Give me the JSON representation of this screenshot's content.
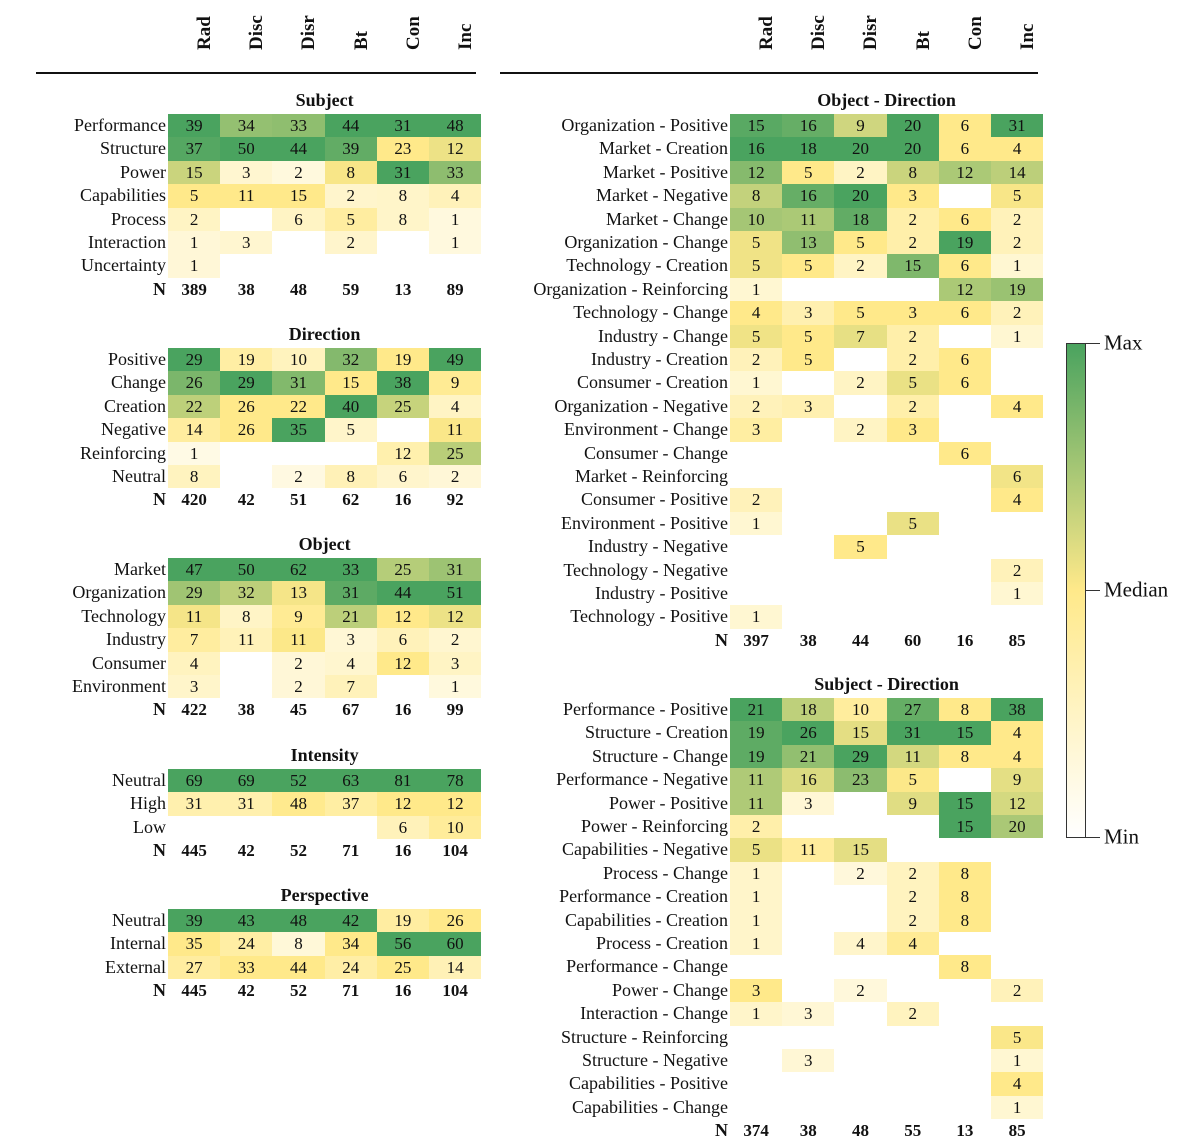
{
  "chart_data": {
    "type": "heatmap",
    "columns": [
      "Rad",
      "Disc",
      "Disr",
      "Bt",
      "Con",
      "Inc"
    ],
    "color_scale": {
      "max": "#4aa35f",
      "median": "#ffe98a",
      "min": "#ffffff"
    },
    "legend": {
      "max": "Max",
      "median": "Median",
      "min": "Min"
    },
    "n_label": "N",
    "left_panels": [
      {
        "title": "Subject",
        "rows": [
          {
            "label": "Performance",
            "values": [
              39,
              34,
              33,
              44,
              31,
              48
            ]
          },
          {
            "label": "Structure",
            "values": [
              37,
              50,
              44,
              39,
              23,
              12
            ]
          },
          {
            "label": "Power",
            "values": [
              15,
              3,
              2,
              8,
              31,
              33
            ]
          },
          {
            "label": "Capabilities",
            "values": [
              5,
              11,
              15,
              2,
              8,
              4
            ]
          },
          {
            "label": "Process",
            "values": [
              2,
              null,
              6,
              5,
              8,
              1
            ]
          },
          {
            "label": "Interaction",
            "values": [
              1,
              3,
              null,
              2,
              null,
              1
            ]
          },
          {
            "label": "Uncertainty",
            "values": [
              1,
              null,
              null,
              null,
              null,
              null
            ]
          }
        ],
        "n": [
          389,
          38,
          48,
          59,
          13,
          89
        ]
      },
      {
        "title": "Direction",
        "rows": [
          {
            "label": "Positive",
            "values": [
              29,
              19,
              10,
              32,
              19,
              49
            ]
          },
          {
            "label": "Change",
            "values": [
              26,
              29,
              31,
              15,
              38,
              9
            ]
          },
          {
            "label": "Creation",
            "values": [
              22,
              26,
              22,
              40,
              25,
              4
            ]
          },
          {
            "label": "Negative",
            "values": [
              14,
              26,
              35,
              5,
              null,
              11
            ]
          },
          {
            "label": "Reinforcing",
            "values": [
              1,
              null,
              null,
              null,
              12,
              25
            ]
          },
          {
            "label": "Neutral",
            "values": [
              8,
              null,
              2,
              8,
              6,
              2
            ]
          }
        ],
        "n": [
          420,
          42,
          51,
          62,
          16,
          92
        ]
      },
      {
        "title": "Object",
        "rows": [
          {
            "label": "Market",
            "values": [
              47,
              50,
              62,
              33,
              25,
              31
            ]
          },
          {
            "label": "Organization",
            "values": [
              29,
              32,
              13,
              31,
              44,
              51
            ]
          },
          {
            "label": "Technology",
            "values": [
              11,
              8,
              9,
              21,
              12,
              12
            ]
          },
          {
            "label": "Industry",
            "values": [
              7,
              11,
              11,
              3,
              6,
              2
            ]
          },
          {
            "label": "Consumer",
            "values": [
              4,
              null,
              2,
              4,
              12,
              3
            ]
          },
          {
            "label": "Environment",
            "values": [
              3,
              null,
              2,
              7,
              null,
              1
            ]
          }
        ],
        "n": [
          422,
          38,
          45,
          67,
          16,
          99
        ]
      },
      {
        "title": "Intensity",
        "rows": [
          {
            "label": "Neutral",
            "values": [
              69,
              69,
              52,
              63,
              81,
              78
            ]
          },
          {
            "label": "High",
            "values": [
              31,
              31,
              48,
              37,
              12,
              12
            ]
          },
          {
            "label": "Low",
            "values": [
              null,
              null,
              null,
              null,
              6,
              10
            ]
          }
        ],
        "n": [
          445,
          42,
          52,
          71,
          16,
          104
        ]
      },
      {
        "title": "Perspective",
        "rows": [
          {
            "label": "Neutral",
            "values": [
              39,
              43,
              48,
              42,
              19,
              26
            ]
          },
          {
            "label": "Internal",
            "values": [
              35,
              24,
              8,
              34,
              56,
              60
            ]
          },
          {
            "label": "External",
            "values": [
              27,
              33,
              44,
              24,
              25,
              14
            ]
          }
        ],
        "n": [
          445,
          42,
          52,
          71,
          16,
          104
        ]
      }
    ],
    "right_panels": [
      {
        "title": "Object - Direction",
        "rows": [
          {
            "label": "Organization - Positive",
            "values": [
              15,
              16,
              9,
              20,
              6,
              31
            ]
          },
          {
            "label": "Market - Creation",
            "values": [
              16,
              18,
              20,
              20,
              6,
              4
            ]
          },
          {
            "label": "Market - Positive",
            "values": [
              12,
              5,
              2,
              8,
              12,
              14
            ]
          },
          {
            "label": "Market - Negative",
            "values": [
              8,
              16,
              20,
              3,
              null,
              5
            ]
          },
          {
            "label": "Market - Change",
            "values": [
              10,
              11,
              18,
              2,
              6,
              2
            ]
          },
          {
            "label": "Organization - Change",
            "values": [
              5,
              13,
              5,
              2,
              19,
              2
            ]
          },
          {
            "label": "Technology - Creation",
            "values": [
              5,
              5,
              2,
              15,
              6,
              1
            ]
          },
          {
            "label": "Organization - Reinforcing",
            "values": [
              1,
              null,
              null,
              null,
              12,
              19
            ]
          },
          {
            "label": "Technology - Change",
            "values": [
              4,
              3,
              5,
              3,
              6,
              2
            ]
          },
          {
            "label": "Industry - Change",
            "values": [
              5,
              5,
              7,
              2,
              null,
              1
            ]
          },
          {
            "label": "Industry - Creation",
            "values": [
              2,
              5,
              null,
              2,
              6,
              null
            ]
          },
          {
            "label": "Consumer - Creation",
            "values": [
              1,
              null,
              2,
              5,
              6,
              null
            ]
          },
          {
            "label": "Organization - Negative",
            "values": [
              2,
              3,
              null,
              2,
              null,
              4
            ]
          },
          {
            "label": "Environment - Change",
            "values": [
              3,
              null,
              2,
              3,
              null,
              null
            ]
          },
          {
            "label": "Consumer - Change",
            "values": [
              null,
              null,
              null,
              null,
              6,
              null
            ]
          },
          {
            "label": "Market - Reinforcing",
            "values": [
              null,
              null,
              null,
              null,
              null,
              6
            ]
          },
          {
            "label": "Consumer - Positive",
            "values": [
              2,
              null,
              null,
              null,
              null,
              4
            ]
          },
          {
            "label": "Environment - Positive",
            "values": [
              1,
              null,
              null,
              5,
              null,
              null
            ]
          },
          {
            "label": "Industry - Negative",
            "values": [
              null,
              null,
              5,
              null,
              null,
              null
            ]
          },
          {
            "label": "Technology - Negative",
            "values": [
              null,
              null,
              null,
              null,
              null,
              2
            ]
          },
          {
            "label": "Industry - Positive",
            "values": [
              null,
              null,
              null,
              null,
              null,
              1
            ]
          },
          {
            "label": "Technology - Positive",
            "values": [
              1,
              null,
              null,
              null,
              null,
              null
            ]
          }
        ],
        "n": [
          397,
          38,
          44,
          60,
          16,
          85
        ]
      },
      {
        "title": "Subject - Direction",
        "rows": [
          {
            "label": "Performance - Positive",
            "values": [
              21,
              18,
              10,
              27,
              8,
              38
            ]
          },
          {
            "label": "Structure - Creation",
            "values": [
              19,
              26,
              15,
              31,
              15,
              4
            ]
          },
          {
            "label": "Structure - Change",
            "values": [
              19,
              21,
              29,
              11,
              8,
              4
            ]
          },
          {
            "label": "Performance - Negative",
            "values": [
              11,
              16,
              23,
              5,
              null,
              9
            ]
          },
          {
            "label": "Power - Positive",
            "values": [
              11,
              3,
              null,
              9,
              15,
              12
            ]
          },
          {
            "label": "Power - Reinforcing",
            "values": [
              2,
              null,
              null,
              null,
              15,
              20
            ]
          },
          {
            "label": "Capabilities - Negative",
            "values": [
              5,
              11,
              15,
              null,
              null,
              null
            ]
          },
          {
            "label": "Process - Change",
            "values": [
              1,
              null,
              2,
              2,
              8,
              null
            ]
          },
          {
            "label": "Performance - Creation",
            "values": [
              1,
              null,
              null,
              2,
              8,
              null
            ]
          },
          {
            "label": "Capabilities - Creation",
            "values": [
              1,
              null,
              null,
              2,
              8,
              null
            ]
          },
          {
            "label": "Process - Creation",
            "values": [
              1,
              null,
              4,
              4,
              null,
              null
            ]
          },
          {
            "label": "Performance - Change",
            "values": [
              null,
              null,
              null,
              null,
              8,
              null
            ]
          },
          {
            "label": "Power - Change",
            "values": [
              3,
              null,
              2,
              null,
              null,
              2
            ]
          },
          {
            "label": "Interaction - Change",
            "values": [
              1,
              3,
              null,
              2,
              null,
              null
            ]
          },
          {
            "label": "Structure - Reinforcing",
            "values": [
              null,
              null,
              null,
              null,
              null,
              5
            ]
          },
          {
            "label": "Structure - Negative",
            "values": [
              null,
              3,
              null,
              null,
              null,
              1
            ]
          },
          {
            "label": "Capabilities - Positive",
            "values": [
              null,
              null,
              null,
              null,
              null,
              4
            ]
          },
          {
            "label": "Capabilities - Change",
            "values": [
              null,
              null,
              null,
              null,
              null,
              1
            ]
          }
        ],
        "n": [
          374,
          38,
          48,
          55,
          13,
          85
        ]
      }
    ]
  }
}
